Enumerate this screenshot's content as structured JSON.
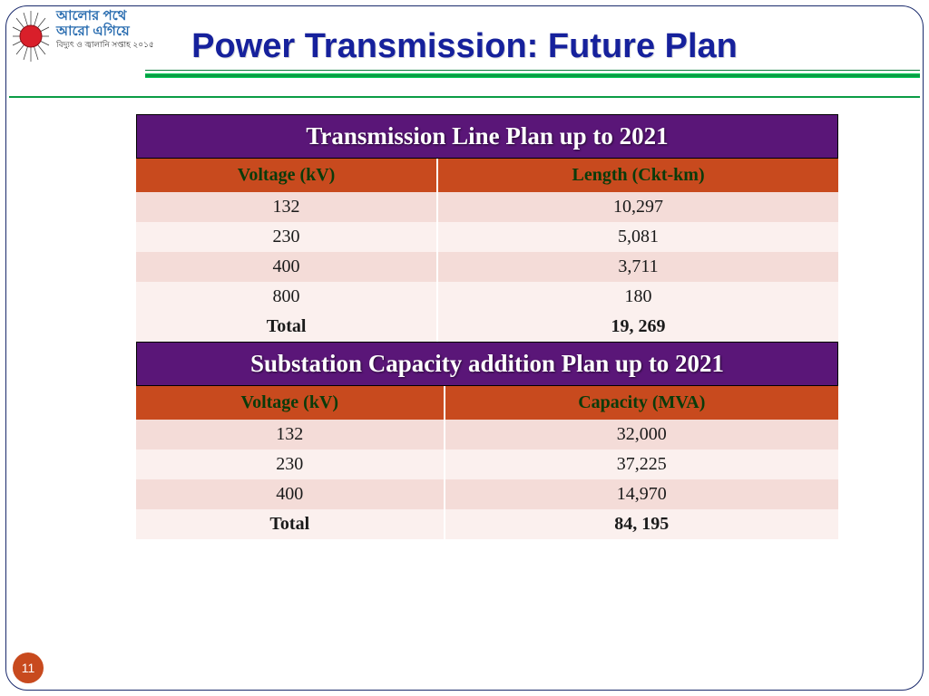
{
  "header": {
    "title": "Power Transmission: Future Plan",
    "logo_line1": "আলোর পথে",
    "logo_line2": "আরো এগিয়ে",
    "logo_line3": "বিদ্যুৎ ও জ্বালানি সপ্তাহ ২০১৫"
  },
  "table1": {
    "title": "Transmission Line Plan up to 2021",
    "columns": [
      "Voltage (kV)",
      "Length (Ckt-km)"
    ],
    "rows": [
      [
        "132",
        "10,297"
      ],
      [
        "230",
        "5,081"
      ],
      [
        "400",
        "3,711"
      ],
      [
        "800",
        "180"
      ]
    ],
    "total_label": "Total",
    "total_value": "19, 269"
  },
  "table2": {
    "title": "Substation Capacity addition Plan up to 2021",
    "columns": [
      "Voltage (kV)",
      "Capacity (MVA)"
    ],
    "rows": [
      [
        "132",
        "32,000"
      ],
      [
        "230",
        "37,225"
      ],
      [
        "400",
        "14,970"
      ]
    ],
    "total_label": "Total",
    "total_value": "84, 195"
  },
  "page_number": "11",
  "colors": {
    "title_color": "#16219c",
    "section_bg": "#5a1678",
    "header_row_bg": "#c84a1e",
    "header_row_text": "#0a3b0a",
    "row_odd": "#f4dcd8",
    "row_even": "#fbf0ee",
    "divider_green": "#0a9c45",
    "page_badge": "#c84a1e"
  }
}
